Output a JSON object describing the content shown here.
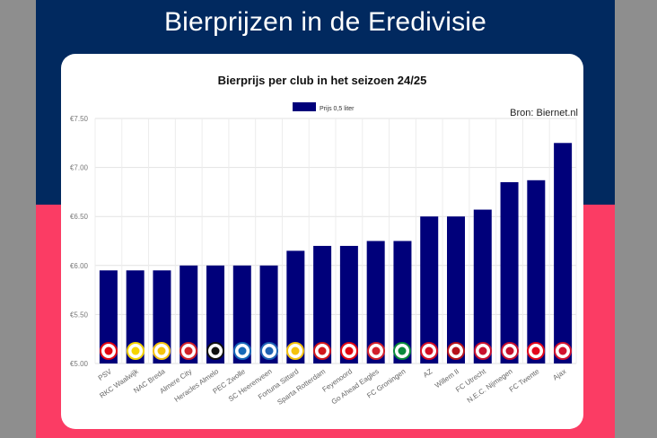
{
  "page": {
    "headline": "Bierprijzen in de Eredivisie",
    "colors": {
      "top_band": "#01295f",
      "bottom_band": "#fb3c64",
      "bar": "#00007a",
      "card": "#ffffff"
    }
  },
  "chart_data": {
    "type": "bar",
    "title": "Bierprijs per club in het seizoen 24/25",
    "source": "Bron: Biernet.nl",
    "legend_position": "top-center",
    "grid": true,
    "ylim": [
      5.0,
      7.5
    ],
    "y_ticks": [
      "€5.00",
      "€5.50",
      "€6.00",
      "€6.50",
      "€7.00",
      "€7.50"
    ],
    "categories": [
      "PSV",
      "RKC Waalwijk",
      "NAC Breda",
      "Almere City",
      "Heracles Almelo",
      "PEC Zwolle",
      "SC Heerenveen",
      "Fortuna Sittard",
      "Sparta Rotterdam",
      "Feyenoord",
      "Go Ahead Eagles",
      "FC Groningen",
      "AZ",
      "Willem II",
      "FC Utrecht",
      "N.E.C. Nijmegen",
      "FC Twente",
      "Ajax"
    ],
    "series": [
      {
        "name": "Prijs 0,5 liter",
        "values": [
          5.95,
          5.95,
          5.95,
          6.0,
          6.0,
          6.0,
          6.0,
          6.15,
          6.2,
          6.2,
          6.25,
          6.25,
          6.5,
          6.5,
          6.57,
          6.85,
          6.87,
          7.25
        ]
      }
    ],
    "club_logo_icons": [
      "psv-logo-icon",
      "rkc-waalwijk-logo-icon",
      "nac-breda-logo-icon",
      "almere-city-logo-icon",
      "heracles-almelo-logo-icon",
      "pec-zwolle-logo-icon",
      "sc-heerenveen-logo-icon",
      "fortuna-sittard-logo-icon",
      "sparta-rotterdam-logo-icon",
      "feyenoord-logo-icon",
      "go-ahead-eagles-logo-icon",
      "fc-groningen-logo-icon",
      "az-logo-icon",
      "willem-ii-logo-icon",
      "fc-utrecht-logo-icon",
      "nec-nijmegen-logo-icon",
      "fc-twente-logo-icon",
      "ajax-logo-icon"
    ],
    "club_logo_colors": [
      "#e30613",
      "#f5d400",
      "#f4c20d",
      "#d2232a",
      "#111111",
      "#1769b8",
      "#1f63b4",
      "#f4c20d",
      "#d1161b",
      "#e30613",
      "#d11f2b",
      "#0a8a3c",
      "#d50f25",
      "#b5121b",
      "#c8102e",
      "#c8102e",
      "#e3061b",
      "#d2122e"
    ]
  }
}
